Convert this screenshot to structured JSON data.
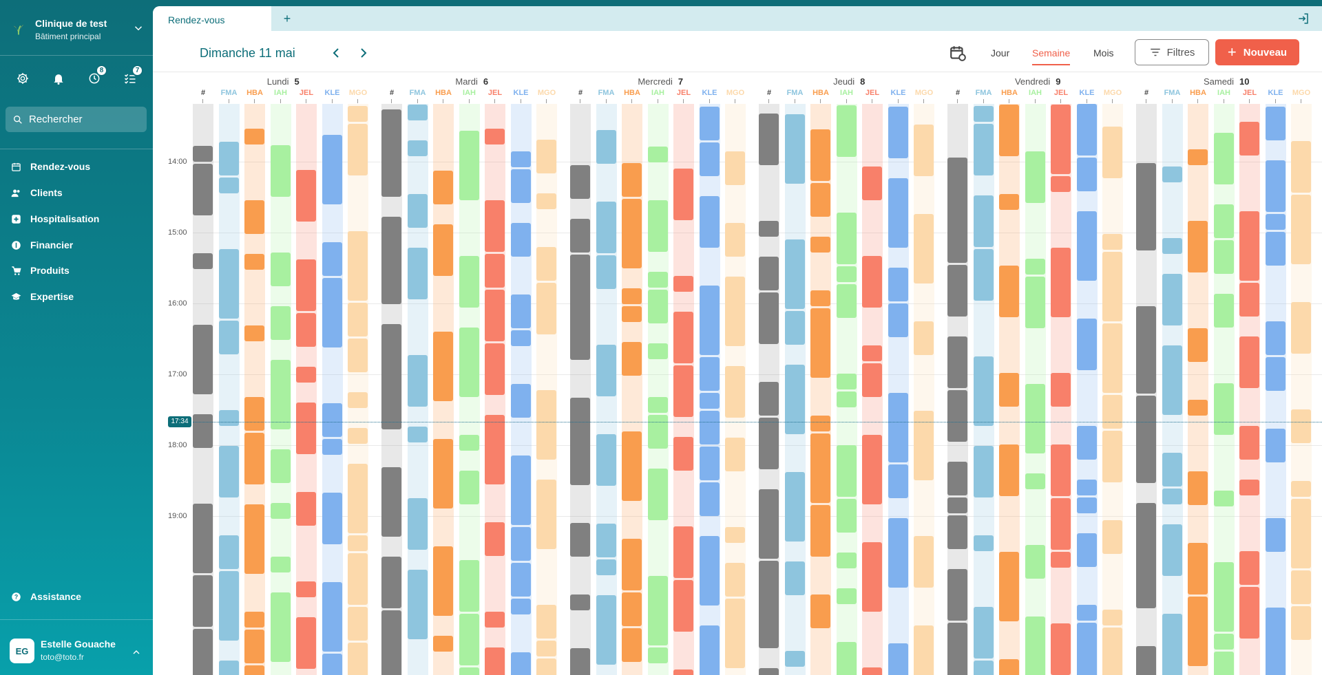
{
  "sidebar": {
    "clinic_name": "Clinique de test",
    "clinic_sub": "Bâtiment principal",
    "badges": {
      "tasks_clock": "8",
      "tasks_list": "7"
    },
    "search_placeholder": "Rechercher",
    "nav": [
      "Rendez-vous",
      "Clients",
      "Hospitalisation",
      "Financier",
      "Produits",
      "Expertise"
    ],
    "assistance": "Assistance",
    "user": {
      "initials": "EG",
      "name": "Estelle Gouache",
      "email": "toto@toto.fr"
    }
  },
  "tabs": {
    "active": "Rendez-vous",
    "add": "+"
  },
  "toolbar": {
    "date": "Dimanche 11 mai",
    "views": [
      "Jour",
      "Semaine",
      "Mois"
    ],
    "active_view": "Semaine",
    "filters": "Filtres",
    "new": "Nouveau"
  },
  "calendar": {
    "days": [
      {
        "name": "Lundi",
        "num": "5"
      },
      {
        "name": "Mardi",
        "num": "6"
      },
      {
        "name": "Mercredi",
        "num": "7"
      },
      {
        "name": "Jeudi",
        "num": "8"
      },
      {
        "name": "Vendredi",
        "num": "9"
      },
      {
        "name": "Samedi",
        "num": "10"
      }
    ],
    "columns": [
      "#",
      "FMA",
      "HBA",
      "IAH",
      "JEL",
      "KLE",
      "MGO"
    ],
    "column_colors": {
      "#": "#808080",
      "FMA": "#8ec5de",
      "HBA": "#f99d4e",
      "IAH": "#a8f0a0",
      "JEL": "#f8806a",
      "KLE": "#7fb1ee",
      "MGO": "#fcd9ab"
    },
    "hours": [
      "14:00",
      "15:00",
      "16:00",
      "17:00",
      "18:00",
      "19:00"
    ],
    "now": "17:34"
  }
}
